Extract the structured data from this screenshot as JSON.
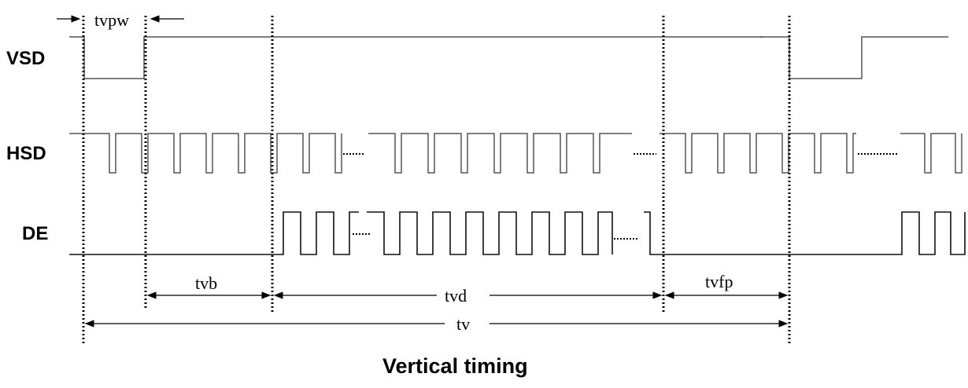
{
  "signals": {
    "vsd": "VSD",
    "hsd": "HSD",
    "de": "DE"
  },
  "parameters": {
    "tvpw": "tvpw",
    "tvb": "tvb",
    "tvd": "tvd",
    "tvfp": "tvfp",
    "tv": "tv"
  },
  "caption": "Vertical timing"
}
